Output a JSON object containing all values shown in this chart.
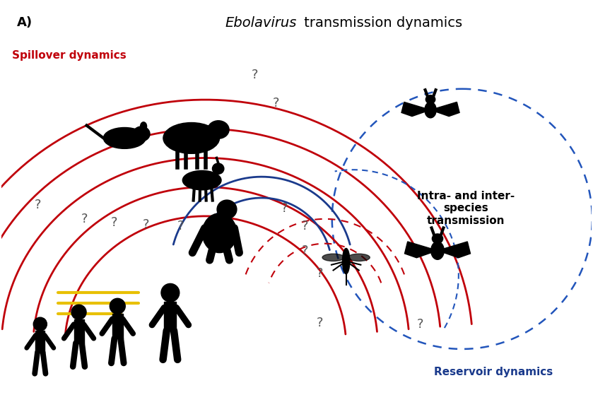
{
  "title_italic": "Ebolavirus",
  "title_rest": " transmission dynamics",
  "label_A": "A)",
  "spillover_label": "Spillover dynamics",
  "reservoir_label": "Reservoir dynamics",
  "intra_label": "Intra- and inter-\nspecies\ntransmission",
  "red": "#c0000a",
  "blue": "#1a3a8c",
  "blue_dot": "#2255bb",
  "red_dot": "#c0000a",
  "yellow": "#e8c000",
  "black": "#111111",
  "bg": "#ffffff",
  "figsize": [
    8.39,
    5.59
  ],
  "dpi": 100
}
